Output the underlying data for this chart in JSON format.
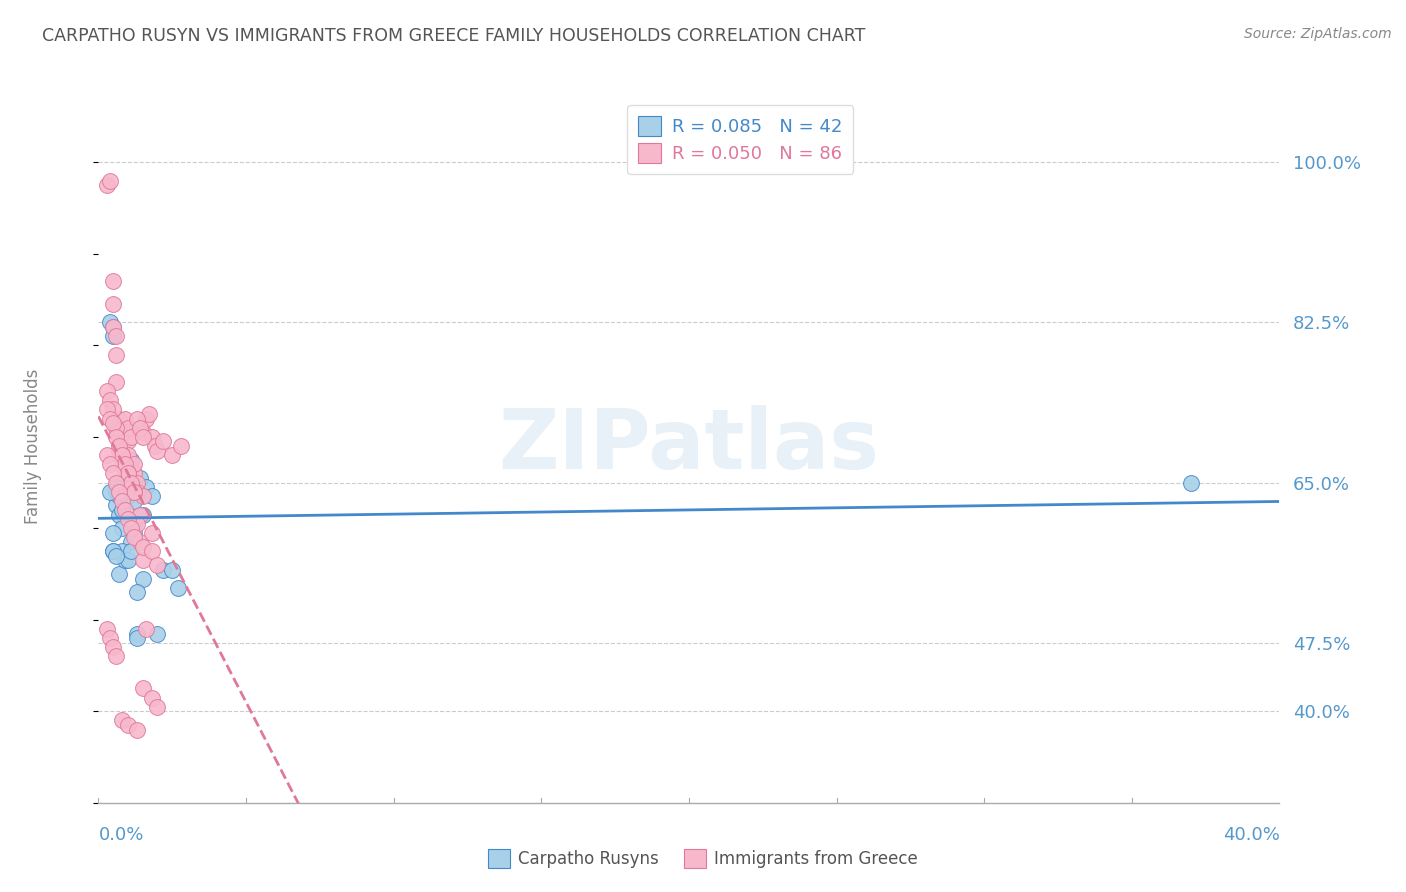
{
  "title": "CARPATHO RUSYN VS IMMIGRANTS FROM GREECE FAMILY HOUSEHOLDS CORRELATION CHART",
  "source": "Source: ZipAtlas.com",
  "ylabel": "Family Households",
  "xlim": [
    0.0,
    0.4
  ],
  "ylim": [
    0.3,
    1.08
  ],
  "watermark": "ZIPatlas",
  "series1_color": "#a8d0e8",
  "series2_color": "#f7b8cc",
  "trend1_color": "#4488cc",
  "trend2_color": "#e07898",
  "title_color": "#555555",
  "label_color": "#5599cc",
  "ytick_positions": [
    0.4,
    0.475,
    0.65,
    0.825,
    1.0
  ],
  "ytick_labels": [
    "40.0%",
    "47.5%",
    "65.0%",
    "82.5%",
    "100.0%"
  ],
  "carpatho_x": [
    0.004,
    0.005,
    0.005,
    0.006,
    0.006,
    0.007,
    0.007,
    0.008,
    0.008,
    0.009,
    0.01,
    0.01,
    0.01,
    0.011,
    0.011,
    0.012,
    0.012,
    0.013,
    0.013,
    0.014,
    0.015,
    0.015,
    0.016,
    0.018,
    0.02,
    0.022,
    0.025,
    0.027,
    0.005,
    0.005,
    0.006,
    0.007,
    0.008,
    0.009,
    0.01,
    0.011,
    0.012,
    0.013,
    0.004,
    0.005,
    0.006,
    0.37
  ],
  "carpatho_y": [
    0.825,
    0.82,
    0.81,
    0.64,
    0.625,
    0.635,
    0.615,
    0.62,
    0.6,
    0.665,
    0.665,
    0.65,
    0.635,
    0.675,
    0.585,
    0.595,
    0.63,
    0.485,
    0.48,
    0.655,
    0.545,
    0.615,
    0.645,
    0.635,
    0.485,
    0.555,
    0.555,
    0.535,
    0.595,
    0.575,
    0.645,
    0.55,
    0.575,
    0.565,
    0.565,
    0.575,
    0.605,
    0.53,
    0.64,
    0.575,
    0.57,
    0.65
  ],
  "greece_x": [
    0.003,
    0.004,
    0.005,
    0.005,
    0.005,
    0.006,
    0.006,
    0.006,
    0.007,
    0.007,
    0.007,
    0.008,
    0.008,
    0.009,
    0.009,
    0.01,
    0.01,
    0.01,
    0.011,
    0.011,
    0.012,
    0.012,
    0.013,
    0.013,
    0.014,
    0.015,
    0.015,
    0.016,
    0.017,
    0.018,
    0.019,
    0.02,
    0.022,
    0.025,
    0.028,
    0.003,
    0.004,
    0.005,
    0.006,
    0.007,
    0.008,
    0.009,
    0.01,
    0.011,
    0.012,
    0.013,
    0.014,
    0.015,
    0.016,
    0.018,
    0.003,
    0.004,
    0.005,
    0.006,
    0.007,
    0.008,
    0.009,
    0.01,
    0.011,
    0.012,
    0.013,
    0.014,
    0.015,
    0.003,
    0.004,
    0.005,
    0.006,
    0.007,
    0.008,
    0.009,
    0.01,
    0.011,
    0.012,
    0.015,
    0.018,
    0.02,
    0.003,
    0.004,
    0.005,
    0.006,
    0.008,
    0.01,
    0.013,
    0.015,
    0.018,
    0.02
  ],
  "greece_y": [
    0.975,
    0.98,
    0.87,
    0.845,
    0.82,
    0.81,
    0.79,
    0.76,
    0.72,
    0.71,
    0.7,
    0.69,
    0.675,
    0.72,
    0.705,
    0.695,
    0.68,
    0.71,
    0.7,
    0.665,
    0.66,
    0.67,
    0.65,
    0.64,
    0.615,
    0.635,
    0.705,
    0.72,
    0.725,
    0.7,
    0.69,
    0.685,
    0.695,
    0.68,
    0.69,
    0.75,
    0.74,
    0.73,
    0.71,
    0.685,
    0.68,
    0.665,
    0.66,
    0.645,
    0.64,
    0.605,
    0.585,
    0.565,
    0.49,
    0.595,
    0.73,
    0.72,
    0.715,
    0.7,
    0.69,
    0.68,
    0.67,
    0.66,
    0.65,
    0.64,
    0.72,
    0.71,
    0.7,
    0.68,
    0.67,
    0.66,
    0.65,
    0.64,
    0.63,
    0.62,
    0.61,
    0.6,
    0.59,
    0.58,
    0.575,
    0.56,
    0.49,
    0.48,
    0.47,
    0.46,
    0.39,
    0.385,
    0.38,
    0.425,
    0.415,
    0.405
  ]
}
